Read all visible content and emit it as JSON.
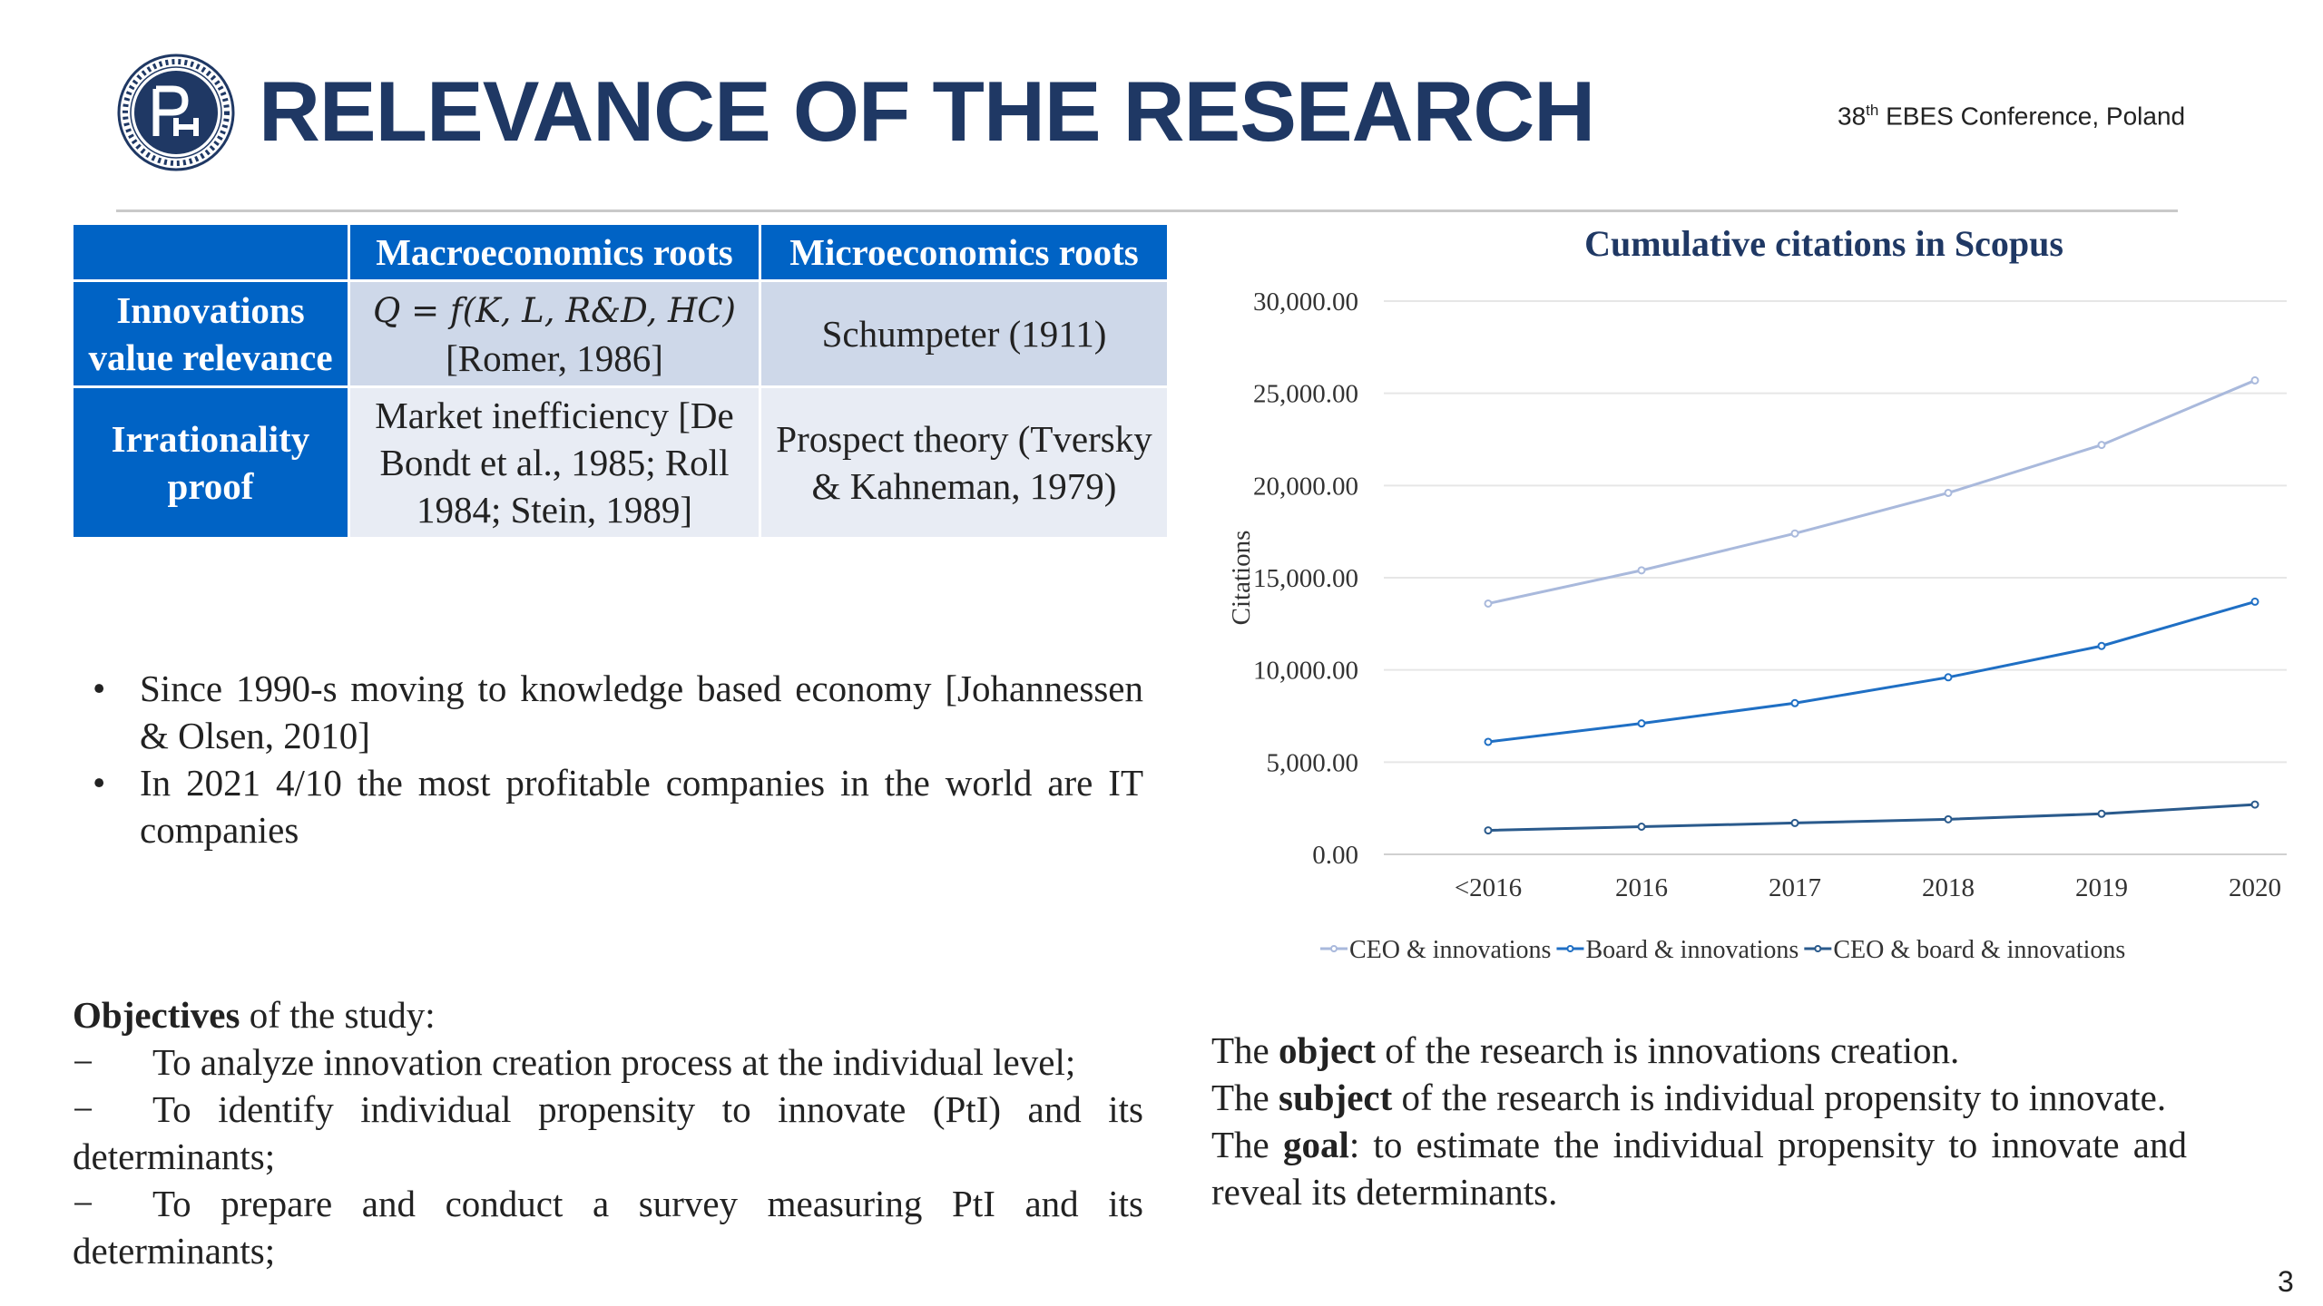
{
  "header": {
    "title": "RELEVANCE OF THE RESEARCH",
    "conference_prefix": "38",
    "conference_sup": "th",
    "conference_suffix": " EBES Conference, Poland"
  },
  "roots_table": {
    "header_macro": "Macroeconomics roots",
    "header_micro": "Microeconomics roots",
    "rows": [
      {
        "label": "Innovations value relevance",
        "macro_formula": "Q = f(K, L, R&D, HC)",
        "macro_ref": "[Romer, 1986]",
        "micro": "Schumpeter (1911)"
      },
      {
        "label": "Irrationality proof",
        "macro": "Market inefficiency [De Bondt et al., 1985; Roll 1984; Stein, 1989]",
        "micro": "Prospect theory (Tversky & Kahneman, 1979)"
      }
    ]
  },
  "bullets": [
    "Since 1990-s moving to knowledge based economy [Johannessen & Olsen, 2010]",
    "In 2021 4/10 the most profitable companies in the world are IT companies"
  ],
  "objectives": {
    "heading_bold": "Objectives",
    "heading_rest": " of the study:",
    "dash": "−",
    "items": [
      "To analyze innovation creation process at the individual level;",
      "To identify individual propensity to innovate (PtI) and its determinants;",
      "To prepare and conduct a survey measuring PtI and its determinants;"
    ]
  },
  "research": {
    "object_pre": "The ",
    "object_bold": "object",
    "object_post": " of the research is innovations creation.",
    "subject_pre": "The ",
    "subject_bold": "subject",
    "subject_post": " of the research is individual propensity to innovate.",
    "goal_pre": "The ",
    "goal_bold": "goal",
    "goal_post": ": to estimate the individual propensity to innovate and reveal its determinants."
  },
  "page_number": "3",
  "chart_data": {
    "type": "line",
    "title": "Cumulative citations in Scopus",
    "xlabel": "",
    "ylabel": "Citations",
    "categories": [
      "<2016",
      "2016",
      "2017",
      "2018",
      "2019",
      "2020"
    ],
    "ylim": [
      0,
      30000
    ],
    "yticks": [
      "0.00",
      "5,000.00",
      "10,000.00",
      "15,000.00",
      "20,000.00",
      "25,000.00",
      "30,000.00"
    ],
    "grid": true,
    "legend_position": "bottom",
    "series": [
      {
        "name": "CEO & innovations",
        "color": "#a9b9dc",
        "values": [
          13600,
          15400,
          17400,
          19600,
          22200,
          25700
        ]
      },
      {
        "name": "Board & innovations",
        "color": "#1f6fc4",
        "values": [
          6100,
          7100,
          8200,
          9600,
          11300,
          13700
        ]
      },
      {
        "name": "CEO & board & innovations",
        "color": "#2a5a8c",
        "values": [
          1300,
          1500,
          1700,
          1900,
          2200,
          2700
        ]
      }
    ]
  }
}
